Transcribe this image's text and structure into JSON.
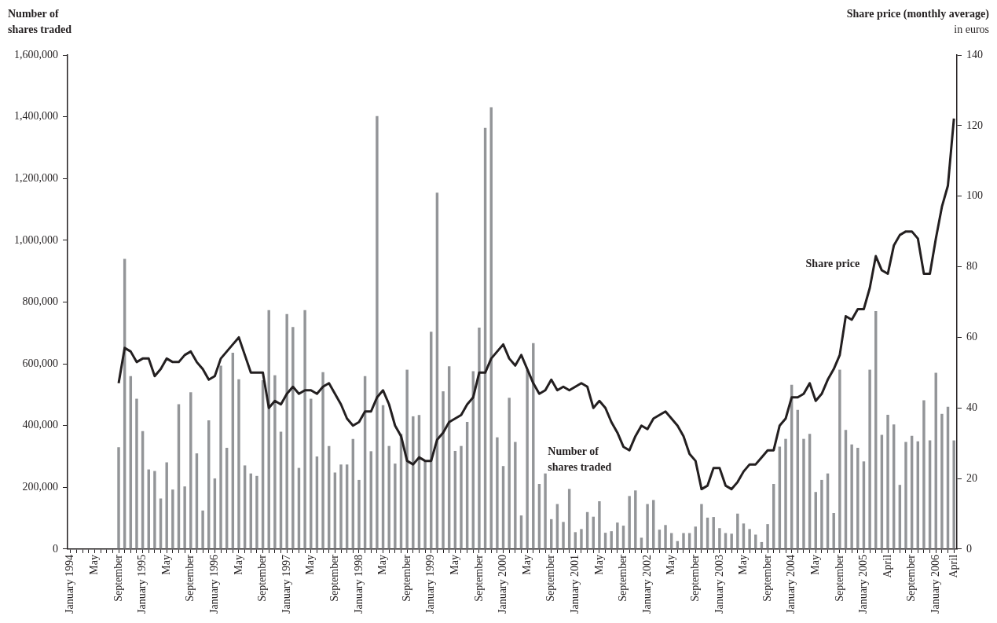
{
  "chart_data": {
    "type": "bar",
    "ylabel": "Number of shares traded",
    "y2label": "Share price (monthly average)",
    "annotations": [
      "in euros"
    ],
    "categories": [
      "January 1994",
      null,
      null,
      null,
      "May",
      null,
      null,
      null,
      "September",
      null,
      null,
      null,
      "January 1995",
      null,
      null,
      null,
      "May",
      null,
      null,
      null,
      "September",
      null,
      null,
      null,
      "January 1996",
      null,
      null,
      null,
      "May",
      null,
      null,
      null,
      "September",
      null,
      null,
      null,
      "January 1997",
      null,
      null,
      null,
      "May",
      null,
      null,
      null,
      "September",
      null,
      null,
      null,
      "January 1998",
      null,
      null,
      null,
      "May",
      null,
      null,
      null,
      "September",
      null,
      null,
      null,
      "January 1999",
      null,
      null,
      null,
      "May",
      null,
      null,
      null,
      "September",
      null,
      null,
      null,
      "January 2000",
      null,
      null,
      null,
      "May",
      null,
      null,
      null,
      "September",
      null,
      null,
      null,
      "January 2001",
      null,
      null,
      null,
      "May",
      null,
      null,
      null,
      "September",
      null,
      null,
      null,
      "January 2002",
      null,
      null,
      null,
      "May",
      null,
      null,
      null,
      "September",
      null,
      null,
      null,
      "January 2003",
      null,
      null,
      null,
      "May",
      null,
      null,
      null,
      "September",
      null,
      null,
      null,
      "January 2004",
      null,
      null,
      null,
      "May",
      null,
      null,
      null,
      "September",
      null,
      null,
      null,
      "January 2005",
      null,
      null,
      null,
      "April",
      null,
      null,
      null,
      "September",
      null,
      null,
      null,
      "January 2006",
      null,
      null,
      "April"
    ],
    "series": [
      {
        "name": "Number of shares traded",
        "color": "#939598",
        "values": [
          null,
          null,
          null,
          null,
          null,
          null,
          null,
          null,
          330000,
          940000,
          560000,
          487000,
          382000,
          258000,
          253000,
          164000,
          281000,
          193000,
          469000,
          203000,
          508000,
          310000,
          125000,
          417000,
          229000,
          594000,
          328000,
          636000,
          550000,
          271000,
          245000,
          237000,
          547000,
          774000,
          563000,
          380000,
          761000,
          719000,
          263000,
          774000,
          487000,
          300000,
          573000,
          334000,
          248000,
          274000,
          274000,
          357000,
          224000,
          560000,
          317000,
          1402000,
          466000,
          334000,
          277000,
          373000,
          581000,
          430000,
          434000,
          285000,
          704000,
          1154000,
          511000,
          592000,
          318000,
          334000,
          412000,
          576000,
          717000,
          1364000,
          1431000,
          362000,
          269000,
          490000,
          347000,
          109000,
          580000,
          667000,
          211000,
          245000,
          97000,
          146000,
          88000,
          195000,
          55000,
          65000,
          120000,
          105000,
          155000,
          53000,
          58000,
          86000,
          76000,
          172000,
          190000,
          37000,
          146000,
          159000,
          63000,
          78000,
          52000,
          26000,
          52000,
          52000,
          73000,
          146000,
          102000,
          104000,
          68000,
          52000,
          50000,
          115000,
          83000,
          65000,
          47000,
          23000,
          81000,
          211000,
          332000,
          357000,
          532000,
          451000,
          357000,
          373000,
          185000,
          224000,
          245000,
          117000,
          581000,
          386000,
          339000,
          328000,
          284000,
          581000,
          771000,
          370000,
          435000,
          404000,
          208000,
          347000,
          367000,
          349000,
          482000,
          352000,
          571000,
          438000,
          461000,
          352000
        ]
      },
      {
        "name": "Share price",
        "type": "line",
        "axis": "y2",
        "color": "#231f20",
        "values": [
          null,
          null,
          null,
          null,
          null,
          null,
          null,
          null,
          47,
          57,
          56,
          53,
          54,
          54,
          49,
          51,
          54,
          53,
          53,
          55,
          56,
          53,
          51,
          48,
          49,
          54,
          56,
          58,
          60,
          55,
          50,
          50,
          50,
          40,
          42,
          41,
          44,
          46,
          44,
          45,
          45,
          44,
          46,
          47,
          44,
          41,
          37,
          35,
          36,
          39,
          39,
          43,
          45,
          41,
          35,
          32,
          25,
          24,
          26,
          25,
          25,
          31,
          33,
          36,
          37,
          38,
          41,
          43,
          50,
          50,
          54,
          56,
          58,
          54,
          52,
          55,
          51,
          47,
          44,
          45,
          48,
          45,
          46,
          45,
          46,
          47,
          46,
          40,
          42,
          40,
          36,
          33,
          29,
          28,
          32,
          35,
          34,
          37,
          38,
          39,
          37,
          35,
          32,
          27,
          25,
          17,
          18,
          23,
          23,
          18,
          17,
          19,
          22,
          24,
          24,
          26,
          28,
          28,
          35,
          37,
          43,
          43,
          44,
          47,
          42,
          44,
          48,
          51,
          55,
          66,
          65,
          68,
          68,
          74,
          83,
          79,
          78,
          86,
          89,
          90,
          90,
          88,
          78,
          78,
          88,
          97,
          103,
          122
        ]
      }
    ],
    "ylim": [
      0,
      1600000
    ],
    "yticks": [
      0,
      {
        "value": 200000,
        "label": "200,000"
      },
      {
        "value": 400000,
        "label": "400,000"
      },
      {
        "value": 600000,
        "label": "600,000"
      },
      {
        "value": 800000,
        "label": "800,000"
      },
      {
        "value": 1000000,
        "label": "1,000,000"
      },
      {
        "value": 1200000,
        "label": "1,200,000"
      },
      {
        "value": 1400000,
        "label": "1,400,000"
      },
      {
        "value": 1600000,
        "label": "1,600,000"
      }
    ],
    "y2lim": [
      0,
      140
    ],
    "y2ticks": [
      0,
      20,
      40,
      60,
      80,
      100,
      120,
      140
    ],
    "grid": false,
    "legend": false,
    "marker": "none",
    "line_style": "solid"
  }
}
